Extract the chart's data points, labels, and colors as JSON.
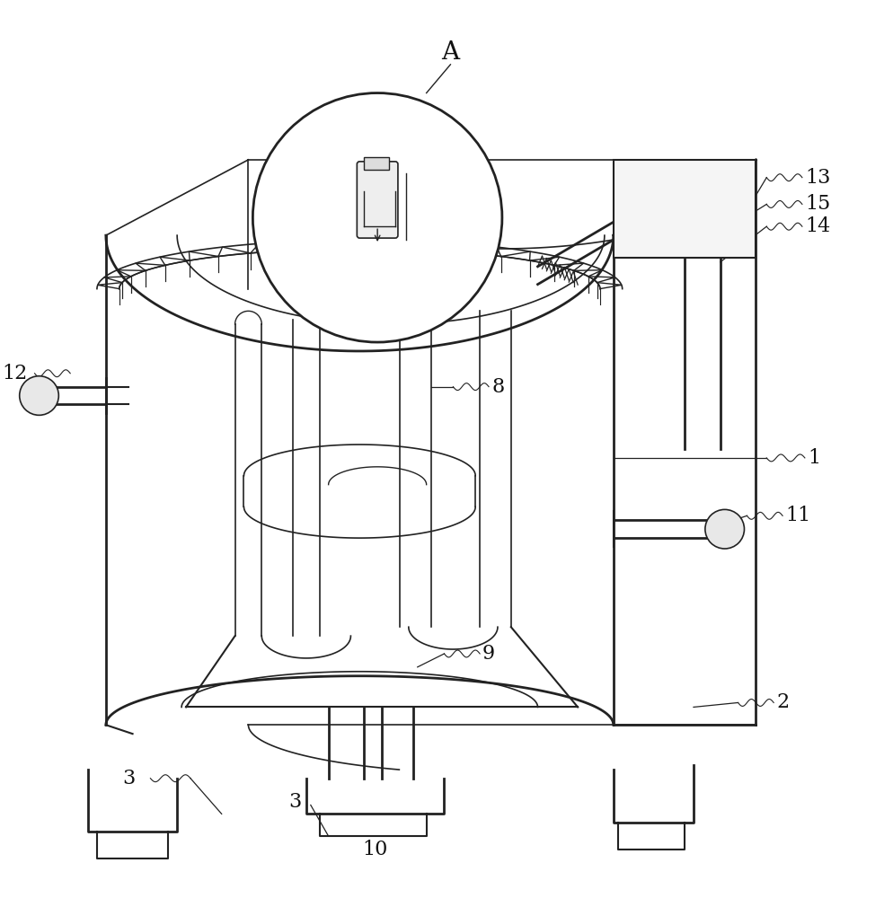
{
  "bg_color": "#ffffff",
  "line_color": "#222222",
  "lw_main": 1.4,
  "lw_thin": 0.8,
  "label_fontsize": 16,
  "label_color": "#111111",
  "fig_width": 9.94,
  "fig_height": 10.0,
  "dpi": 100
}
